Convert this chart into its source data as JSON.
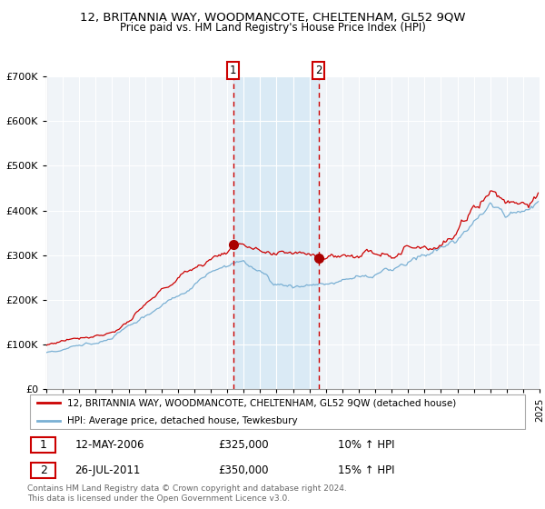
{
  "title": "12, BRITANNIA WAY, WOODMANCOTE, CHELTENHAM, GL52 9QW",
  "subtitle": "Price paid vs. HM Land Registry's House Price Index (HPI)",
  "legend_house": "12, BRITANNIA WAY, WOODMANCOTE, CHELTENHAM, GL52 9QW (detached house)",
  "legend_hpi": "HPI: Average price, detached house, Tewkesbury",
  "transaction1_date": "12-MAY-2006",
  "transaction1_price": 325000,
  "transaction1_hpi_pct": "10% ↑ HPI",
  "transaction2_date": "26-JUL-2011",
  "transaction2_price": 350000,
  "transaction2_hpi_pct": "15% ↑ HPI",
  "copyright": "Contains HM Land Registry data © Crown copyright and database right 2024.\nThis data is licensed under the Open Government Licence v3.0.",
  "house_color": "#cc0000",
  "hpi_color": "#7ab0d4",
  "shade_color": "#daeaf5",
  "vline_color": "#cc0000",
  "marker_color": "#aa0000",
  "ylim": [
    0,
    700000
  ],
  "ylabel_ticks": [
    0,
    100000,
    200000,
    300000,
    400000,
    500000,
    600000,
    700000
  ],
  "year_start": 1995,
  "year_end": 2025,
  "transaction1_year": 2006.37,
  "transaction2_year": 2011.56,
  "bg_color": "#f0f4f8"
}
